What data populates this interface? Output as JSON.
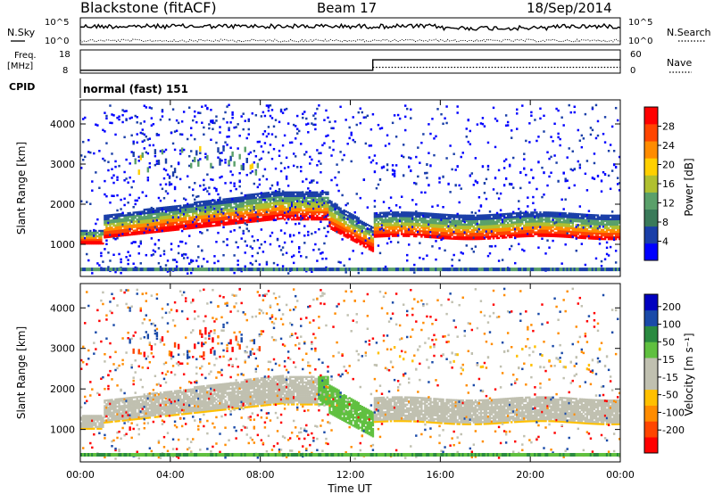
{
  "header": {
    "title": "Blackstone (fitACF)",
    "beam": "Beam 17",
    "date": "18/Sep/2014",
    "nsky_label": "N.Sky",
    "nsearch_label": "N.Search",
    "ticks_top": [
      "10^5",
      "10^0"
    ],
    "freq_label_line1": "Freq.",
    "freq_label_line2": "[MHz]",
    "freq_ticks": [
      "18",
      "8"
    ],
    "nave_label": "Nave",
    "nave_ticks": [
      "60",
      "0"
    ],
    "cpid_label": "CPID",
    "cpid_value": "normal (fast) 151"
  },
  "colors": {
    "power_scale": [
      "#0000ff",
      "#1a3fa8",
      "#3a7a5a",
      "#5aa06a",
      "#b0c030",
      "#ffd000",
      "#ff8c00",
      "#ff4500",
      "#ff0000"
    ],
    "velocity_scale": [
      "#ff0000",
      "#ff4500",
      "#ff8c00",
      "#ffc000",
      "#c0c0b0",
      "#c0c0b0",
      "#60c040",
      "#2a8a40",
      "#1a4aa8",
      "#0000c0"
    ]
  },
  "chart_data": [
    {
      "type": "heatmap",
      "name": "power-panel",
      "ylabel": "Slant Range [km]",
      "y_ticks": [
        "1000",
        "2000",
        "3000",
        "4000"
      ],
      "ylim": [
        200,
        4600
      ],
      "x_ticks": [
        "00:00",
        "04:00",
        "08:00",
        "12:00",
        "16:00",
        "20:00",
        "00:00"
      ],
      "xlim_hours": [
        0,
        24
      ],
      "colorbar_label": "Power [dB]",
      "colorbar_ticks": [
        "28",
        "24",
        "20",
        "16",
        "12",
        "8",
        "4"
      ]
    },
    {
      "type": "heatmap",
      "name": "velocity-panel",
      "ylabel": "Slant Range [km]",
      "y_ticks": [
        "1000",
        "2000",
        "3000",
        "4000"
      ],
      "ylim": [
        200,
        4600
      ],
      "x_ticks": [
        "00:00",
        "04:00",
        "08:00",
        "12:00",
        "16:00",
        "20:00",
        "00:00"
      ],
      "xlim_hours": [
        0,
        24
      ],
      "xlabel": "Time UT",
      "colorbar_label": "Velocity [m s⁻¹]",
      "colorbar_ticks": [
        "200",
        "100",
        "50",
        "15",
        "-15",
        "-50",
        "-100",
        "-200"
      ]
    }
  ],
  "operating_params": {
    "freq_mhz_before": 10,
    "freq_mhz_after": 14.5,
    "nave_before": 10,
    "nave_after": 15,
    "change_hour": 13
  }
}
